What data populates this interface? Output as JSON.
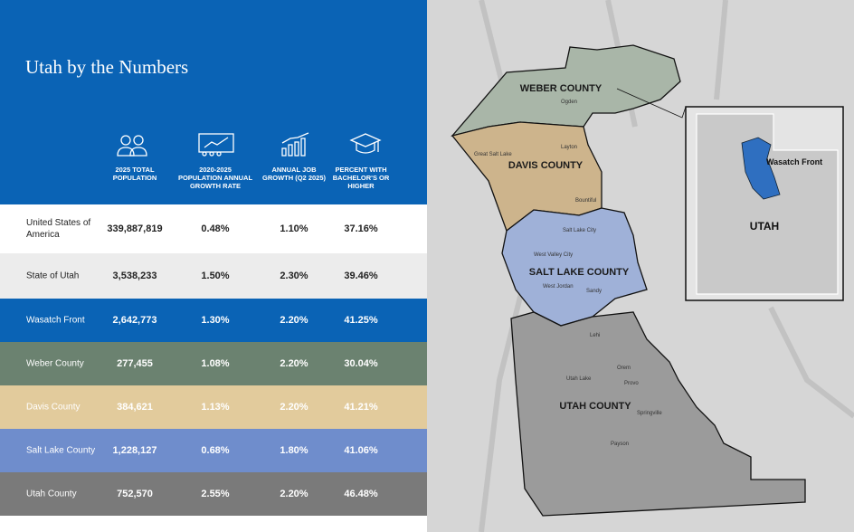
{
  "header": {
    "title": "Utah by the Numbers"
  },
  "table": {
    "columns": [
      "2025 TOTAL POPULATION",
      "2020-2025 POPULATION ANNUAL GROWTH RATE",
      "ANNUAL JOB GROWTH (Q2 2025)",
      "PERCENT WITH BACHELOR'S OR HIGHER"
    ],
    "rows": [
      [
        "United States of America",
        "339,887,819",
        "0.48%",
        "1.10%",
        "37.16%"
      ],
      [
        "State of Utah",
        "3,538,233",
        "1.50%",
        "2.30%",
        "39.46%"
      ],
      [
        "Wasatch Front",
        "2,642,773",
        "1.30%",
        "2.20%",
        "41.25%"
      ],
      [
        "Weber County",
        "277,455",
        "1.08%",
        "2.20%",
        "30.04%"
      ],
      [
        "Davis County",
        "384,621",
        "1.13%",
        "2.20%",
        "41.21%"
      ],
      [
        "Salt Lake County",
        "1,228,127",
        "0.68%",
        "1.80%",
        "41.06%"
      ],
      [
        "Utah County",
        "752,570",
        "2.55%",
        "2.20%",
        "46.48%"
      ]
    ]
  },
  "map": {
    "counties": [
      "WEBER COUNTY",
      "DAVIS COUNTY",
      "SALT LAKE COUNTY",
      "UTAH COUNTY"
    ],
    "cities": [
      "Ogden",
      "Layton",
      "Bountiful",
      "Great Salt Lake",
      "Salt Lake City",
      "West Valley City",
      "West Jordan",
      "Sandy",
      "Lehi",
      "Orem",
      "Provo",
      "Springville",
      "Payson",
      "Utah Lake"
    ],
    "inset": {
      "region": "Wasatch Front",
      "state": "UTAH"
    }
  }
}
